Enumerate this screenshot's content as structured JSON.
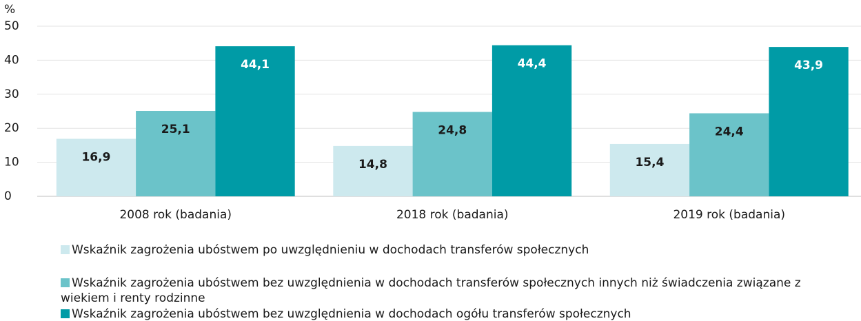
{
  "chart_data": {
    "type": "bar",
    "y_label": "%",
    "categories": [
      "2008 rok (badania)",
      "2018 rok (badania)",
      "2019 rok (badania)"
    ],
    "series": [
      {
        "name": "Wskaźnik zagrożenia ubóstwem po uwzględnieniu w dochodach transferów społecznych",
        "color": "#cde9ee",
        "values": [
          16.9,
          14.8,
          15.4
        ],
        "value_labels": [
          "16,9",
          "14,8",
          "15,4"
        ]
      },
      {
        "name": "Wskaźnik zagrożenia ubóstwem bez uwzględnienia w dochodach transferów społecznych innych niż świadczenia związane z wiekiem i renty rodzinne",
        "color": "#6bc3c9",
        "values": [
          25.1,
          24.8,
          24.4
        ],
        "value_labels": [
          "25,1",
          "24,8",
          "24,4"
        ]
      },
      {
        "name": "Wskaźnik zagrożenia ubóstwem bez uwzględnienia w dochodach ogółu  transferów społecznych",
        "color": "#009ba6",
        "values": [
          44.1,
          44.4,
          43.9
        ],
        "value_labels": [
          "44,1",
          "44,4",
          "43,9"
        ]
      }
    ],
    "ylim": [
      0,
      50
    ],
    "yticks": [
      0,
      10,
      20,
      30,
      40,
      50
    ],
    "grid": true
  }
}
